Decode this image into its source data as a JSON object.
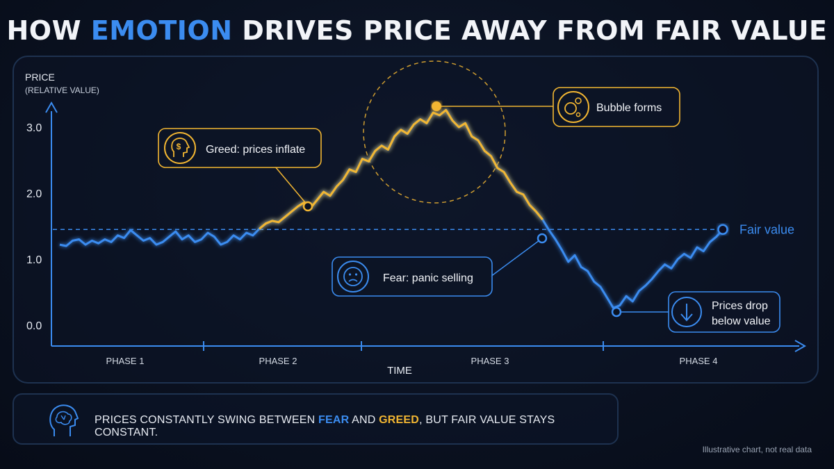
{
  "title": {
    "prefix": "HOW ",
    "accent": "EMOTION",
    "suffix": " DRIVES PRICE AWAY FROM FAIR VALUE"
  },
  "colors": {
    "background": "#0a1120",
    "fear_blue": "#3b8cf0",
    "greed_gold": "#f2b632",
    "panel_border": "#1e3250"
  },
  "chart_data": {
    "type": "line",
    "ylabel": "PRICE",
    "ylabel_sub": "(RELATIVE VALUE)",
    "xlabel": "TIME",
    "y_ticks": [
      "3.0",
      "2.0",
      "1.0",
      "0.0"
    ],
    "y_tick_values": [
      3.0,
      2.0,
      1.0,
      0.0
    ],
    "ylim": [
      0,
      3.3
    ],
    "x_range": [
      0,
      100
    ],
    "phases": [
      "PHASE 1",
      "PHASE 2",
      "PHASE 3",
      "PHASE 4"
    ],
    "fair_value": 1.45,
    "fair_value_label": "Fair value",
    "series": [
      {
        "points": [
          [
            0,
            1.22
          ],
          [
            1,
            1.2
          ],
          [
            2,
            1.28
          ],
          [
            3,
            1.3
          ],
          [
            4,
            1.22
          ],
          [
            5,
            1.28
          ],
          [
            6,
            1.24
          ],
          [
            7,
            1.3
          ],
          [
            8,
            1.26
          ],
          [
            9,
            1.36
          ],
          [
            10,
            1.32
          ],
          [
            11,
            1.44
          ],
          [
            12,
            1.36
          ],
          [
            13,
            1.28
          ],
          [
            14,
            1.32
          ],
          [
            15,
            1.22
          ],
          [
            16,
            1.26
          ],
          [
            17,
            1.34
          ],
          [
            18,
            1.42
          ],
          [
            19,
            1.3
          ],
          [
            20,
            1.36
          ],
          [
            21,
            1.26
          ],
          [
            22,
            1.3
          ],
          [
            23,
            1.4
          ],
          [
            24,
            1.34
          ],
          [
            25,
            1.22
          ],
          [
            26,
            1.26
          ],
          [
            27,
            1.36
          ],
          [
            28,
            1.3
          ],
          [
            29,
            1.4
          ],
          [
            30,
            1.36
          ],
          [
            31,
            1.46
          ],
          [
            32,
            1.54
          ],
          [
            33,
            1.58
          ],
          [
            34,
            1.56
          ],
          [
            35,
            1.64
          ],
          [
            36,
            1.72
          ],
          [
            37,
            1.8
          ],
          [
            38,
            1.86
          ],
          [
            39,
            1.78
          ],
          [
            40,
            1.9
          ],
          [
            41,
            2.02
          ],
          [
            42,
            1.96
          ],
          [
            43,
            2.1
          ],
          [
            44,
            2.2
          ],
          [
            45,
            2.36
          ],
          [
            46,
            2.32
          ],
          [
            47,
            2.52
          ],
          [
            48,
            2.48
          ],
          [
            49,
            2.64
          ],
          [
            50,
            2.72
          ],
          [
            51,
            2.66
          ],
          [
            52,
            2.86
          ],
          [
            53,
            2.96
          ],
          [
            54,
            2.9
          ],
          [
            55,
            3.04
          ],
          [
            56,
            3.12
          ],
          [
            57,
            3.06
          ],
          [
            58,
            3.22
          ],
          [
            59,
            3.18
          ],
          [
            60,
            3.26
          ],
          [
            61,
            3.1
          ],
          [
            62,
            3.0
          ],
          [
            63,
            3.06
          ],
          [
            64,
            2.86
          ],
          [
            65,
            2.8
          ],
          [
            66,
            2.64
          ],
          [
            67,
            2.56
          ],
          [
            68,
            2.38
          ],
          [
            69,
            2.32
          ],
          [
            70,
            2.16
          ],
          [
            71,
            2.02
          ],
          [
            72,
            1.98
          ],
          [
            73,
            1.82
          ],
          [
            74,
            1.72
          ],
          [
            75,
            1.6
          ],
          [
            76,
            1.44
          ],
          [
            77,
            1.3
          ],
          [
            78,
            1.14
          ],
          [
            79,
            0.96
          ],
          [
            80,
            1.06
          ],
          [
            81,
            0.88
          ],
          [
            82,
            0.82
          ],
          [
            83,
            0.66
          ],
          [
            84,
            0.58
          ],
          [
            85,
            0.42
          ],
          [
            86,
            0.26
          ],
          [
            87,
            0.3
          ],
          [
            88,
            0.44
          ],
          [
            89,
            0.36
          ],
          [
            90,
            0.52
          ],
          [
            91,
            0.6
          ],
          [
            92,
            0.7
          ],
          [
            93,
            0.82
          ],
          [
            94,
            0.92
          ],
          [
            95,
            0.86
          ],
          [
            96,
            1.0
          ],
          [
            97,
            1.08
          ],
          [
            98,
            1.02
          ],
          [
            99,
            1.18
          ],
          [
            100,
            1.12
          ],
          [
            101,
            1.26
          ],
          [
            102,
            1.34
          ],
          [
            103,
            1.45
          ]
        ],
        "x_max": 103
      }
    ],
    "greed_range": [
      31,
      75
    ]
  },
  "annotations": {
    "greed": "Greed: prices inflate",
    "bubble": "Bubble forms",
    "fear": "Fear: panic selling",
    "drop_line1": "Prices drop",
    "drop_line2": "below value"
  },
  "footer": {
    "prefix": "PRICES CONSTANTLY SWING BETWEEN ",
    "fear": "FEAR",
    "middle": " AND ",
    "greed": "GREED",
    "suffix": ", BUT FAIR VALUE STAYS CONSTANT."
  },
  "note": "Illustrative chart, not real data"
}
